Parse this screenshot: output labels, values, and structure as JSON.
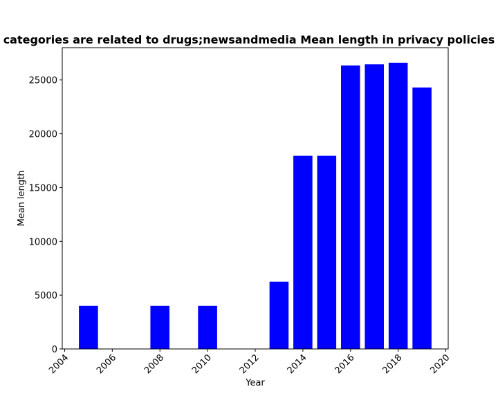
{
  "chart_data": {
    "type": "bar",
    "title": "categories are related to drugs;newsandmedia Mean length in privacy policies",
    "xlabel": "Year",
    "ylabel": "Mean length",
    "x": [
      2005,
      2008,
      2010,
      2013,
      2014,
      2015,
      2016,
      2017,
      2018,
      2019
    ],
    "values": [
      4000,
      4000,
      4000,
      6250,
      17950,
      17950,
      26350,
      26450,
      26600,
      24300
    ],
    "xlim": [
      2003.9,
      2020.1
    ],
    "ylim": [
      0,
      28000
    ],
    "xticks": [
      "2004",
      "2006",
      "2008",
      "2010",
      "2012",
      "2014",
      "2016",
      "2018",
      "2020"
    ],
    "yticks": [
      "0",
      "5000",
      "10000",
      "15000",
      "20000",
      "25000"
    ],
    "bar_color": "#0000ff",
    "grid": false,
    "legend": "none"
  }
}
